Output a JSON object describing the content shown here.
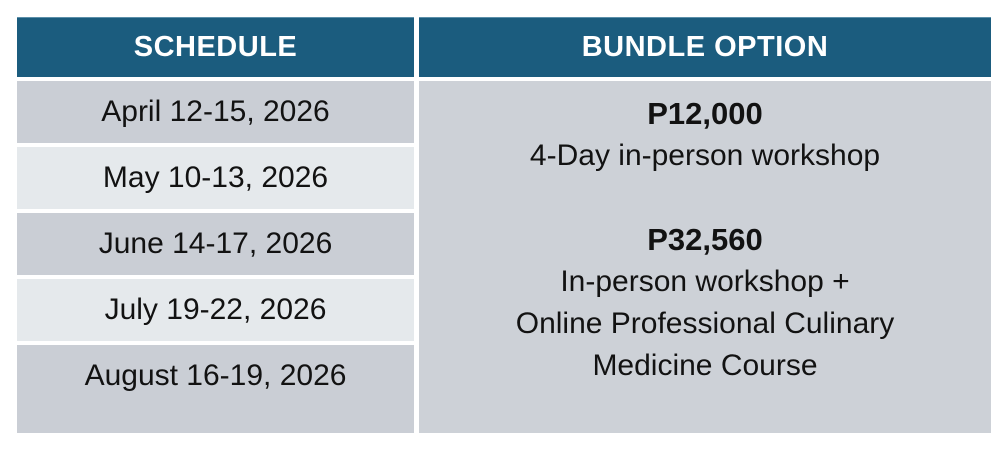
{
  "table": {
    "headers": {
      "schedule": "SCHEDULE",
      "bundle": "BUNDLE OPTION"
    },
    "schedule_rows": [
      {
        "date": "April 12-15, 2026"
      },
      {
        "date": "May 10-13, 2026"
      },
      {
        "date": "June 14-17, 2026"
      },
      {
        "date": "July 19-22, 2026"
      },
      {
        "date": "August 16-19, 2026"
      }
    ],
    "bundle_options": [
      {
        "price": "P12,000",
        "line1": "4-Day in-person workshop"
      },
      {
        "price": "P32,560",
        "line1": "In-person workshop +",
        "line2": "Online Professional Culinary",
        "line3": "Medicine Course"
      }
    ]
  },
  "colors": {
    "header_bg": "#1B5C7E",
    "header_text": "#FFFFFF",
    "row_dark": "#CACED5",
    "row_light": "#E5E9EC",
    "bundle_bg": "#CDD1D7",
    "text": "#121212",
    "page_bg": "#FFFFFF"
  }
}
